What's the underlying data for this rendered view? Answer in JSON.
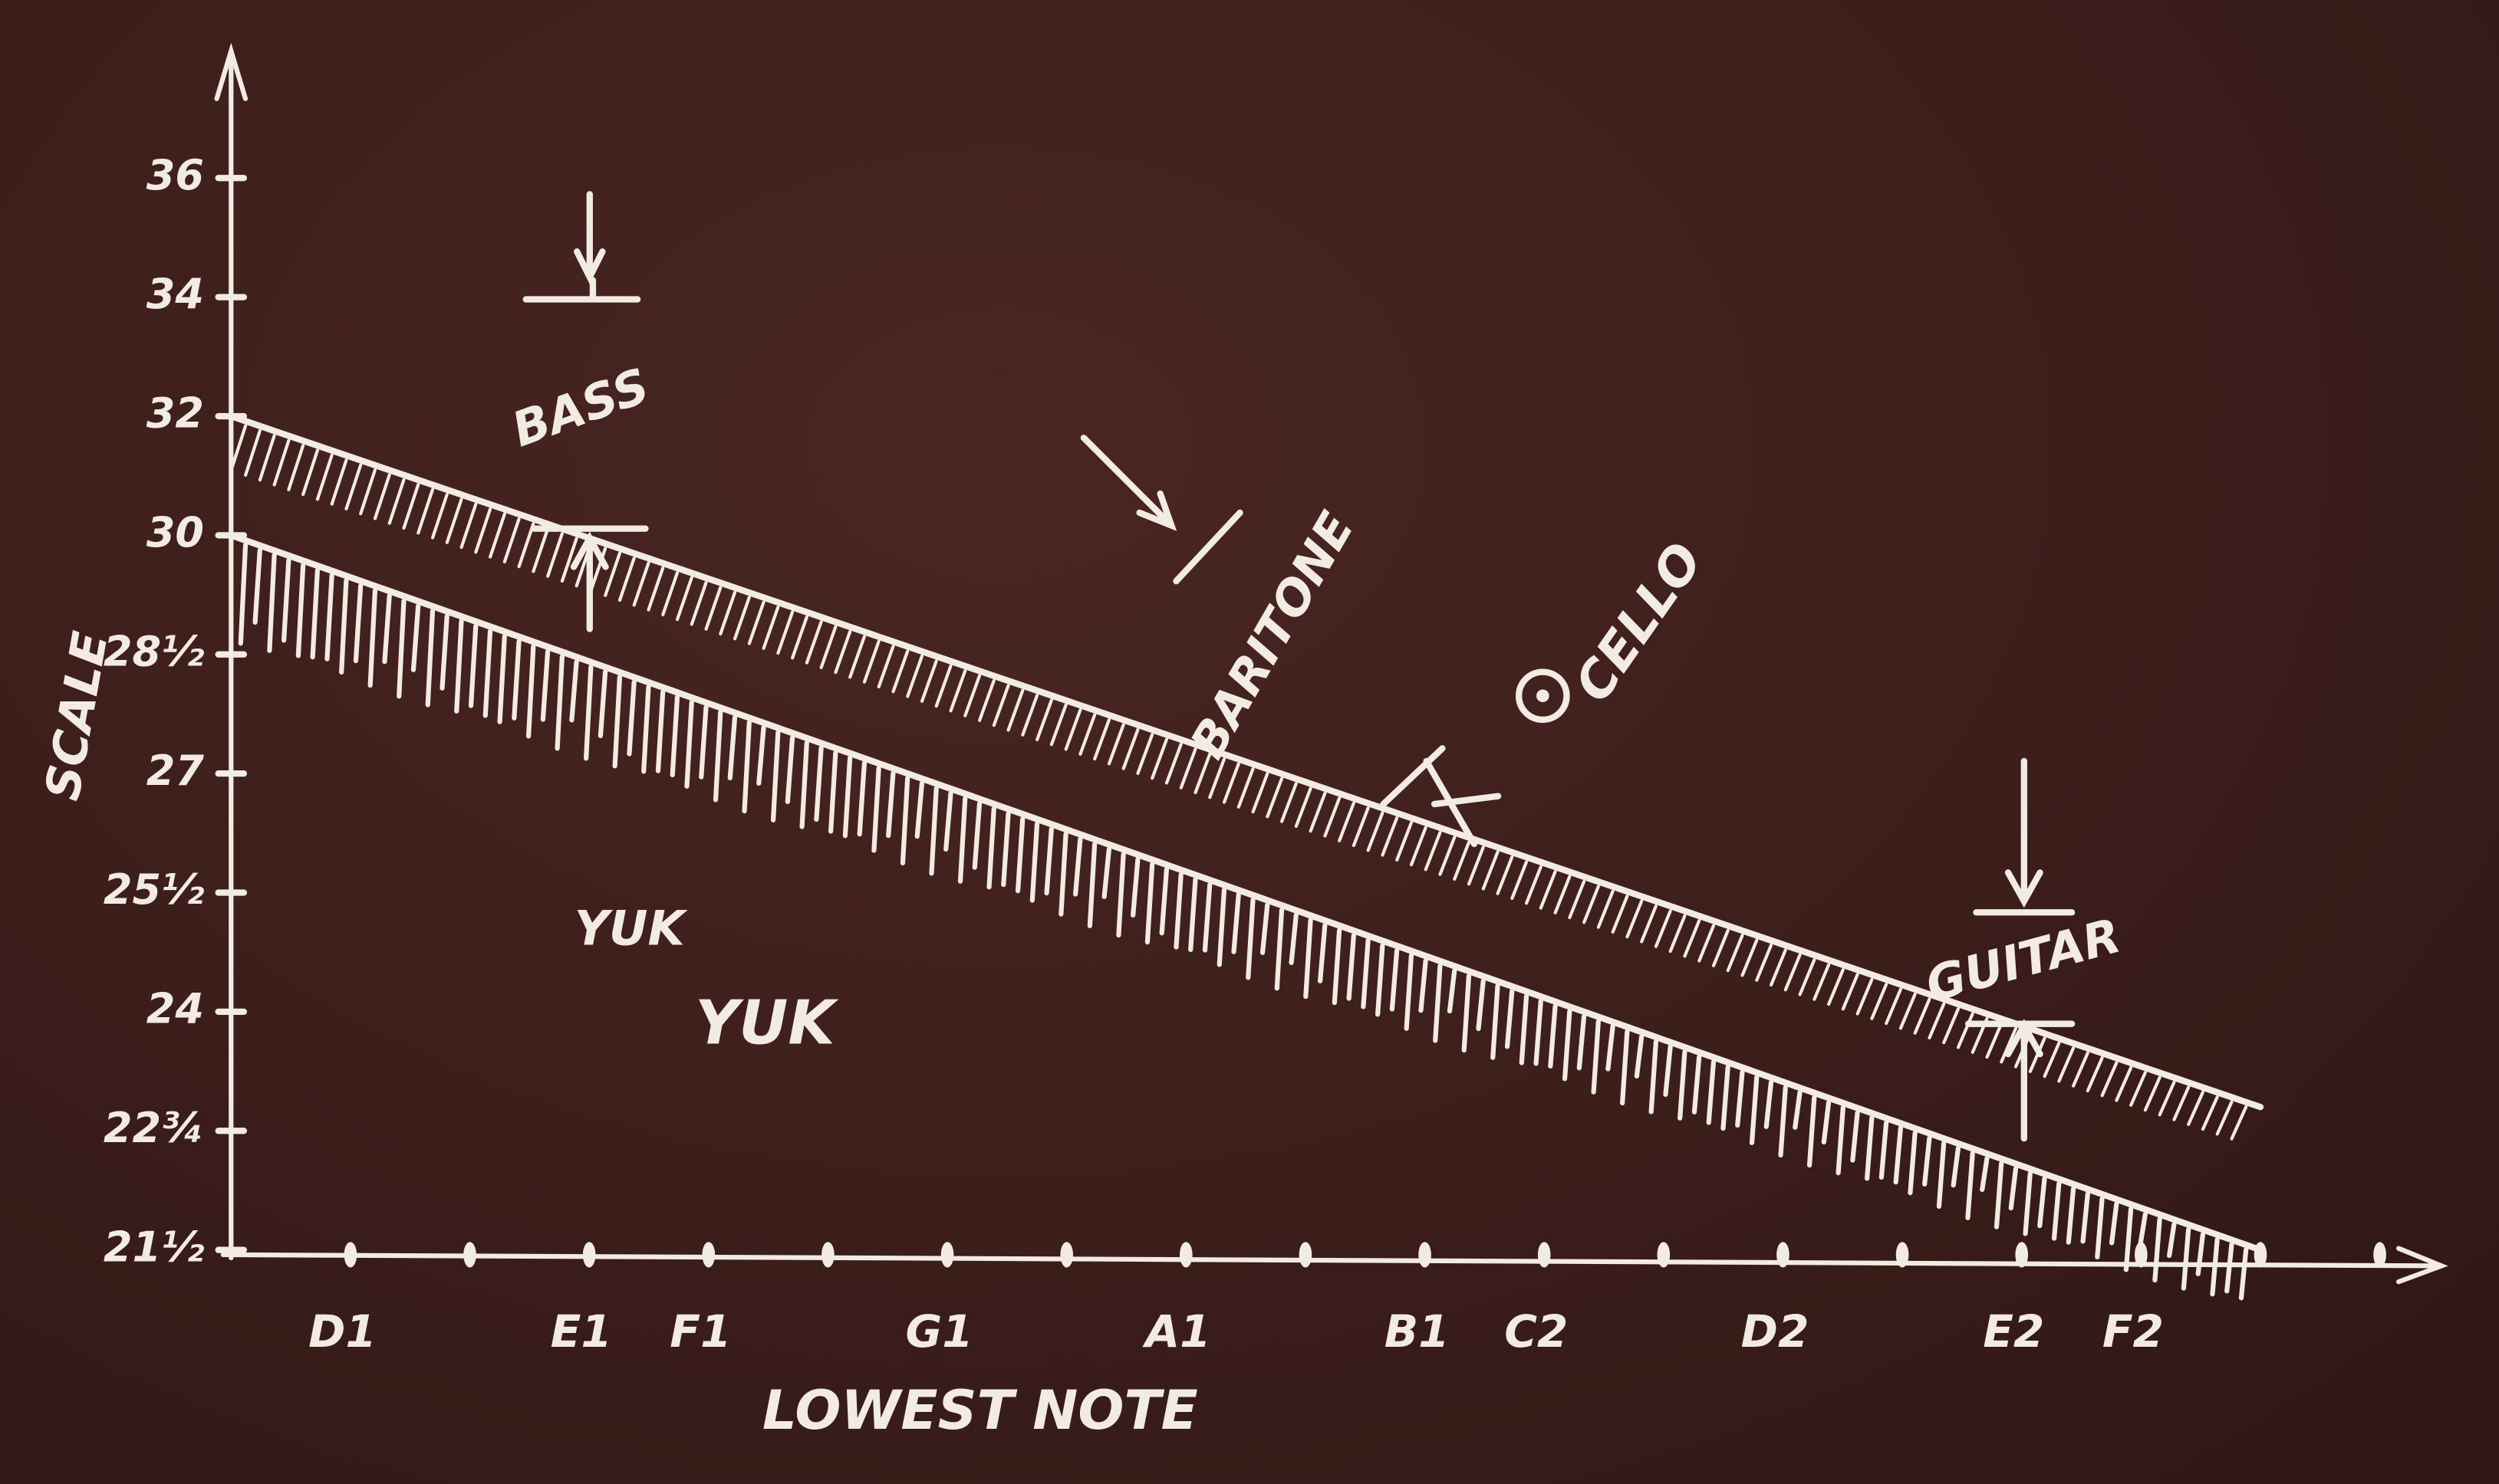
{
  "chart_data": {
    "type": "line",
    "x_label": "LOWEST NOTE",
    "y_label": "SCALE",
    "xlim": [
      0,
      19
    ],
    "xticks": [
      {
        "value": 1,
        "label": "D1"
      },
      {
        "value": 2,
        "label": null
      },
      {
        "value": 3,
        "label": "E1"
      },
      {
        "value": 4,
        "label": "F1"
      },
      {
        "value": 5,
        "label": null
      },
      {
        "value": 6,
        "label": "G1"
      },
      {
        "value": 7,
        "label": null
      },
      {
        "value": 8,
        "label": "A1"
      },
      {
        "value": 9,
        "label": null
      },
      {
        "value": 10,
        "label": "B1"
      },
      {
        "value": 11,
        "label": "C2"
      },
      {
        "value": 12,
        "label": null
      },
      {
        "value": 13,
        "label": "D2"
      },
      {
        "value": 14,
        "label": null
      },
      {
        "value": 15,
        "label": "E2"
      },
      {
        "value": 16,
        "label": "F2"
      },
      {
        "value": 17,
        "label": null
      },
      {
        "value": 18,
        "label": null
      }
    ],
    "ylim": [
      21.5,
      36
    ],
    "yticks": [
      {
        "value": 21.5,
        "label": "21½"
      },
      {
        "value": 22.75,
        "label": "22¾"
      },
      24,
      {
        "value": 25.5,
        "label": "25½"
      },
      27,
      {
        "value": 28.5,
        "label": "28½"
      },
      30,
      32,
      34,
      36
    ],
    "series": [
      {
        "color": "#f1ebe3",
        "x": [
          0,
          17
        ],
        "values": [
          32,
          23
        ]
      },
      {
        "color": "#f1ebe3",
        "x": [
          0,
          17
        ],
        "values": [
          30,
          21.5
        ]
      }
    ],
    "annotations": [
      "BASS",
      "BARITONE",
      "CELLO",
      "GUITAR",
      "YUK",
      "YUK"
    ]
  }
}
